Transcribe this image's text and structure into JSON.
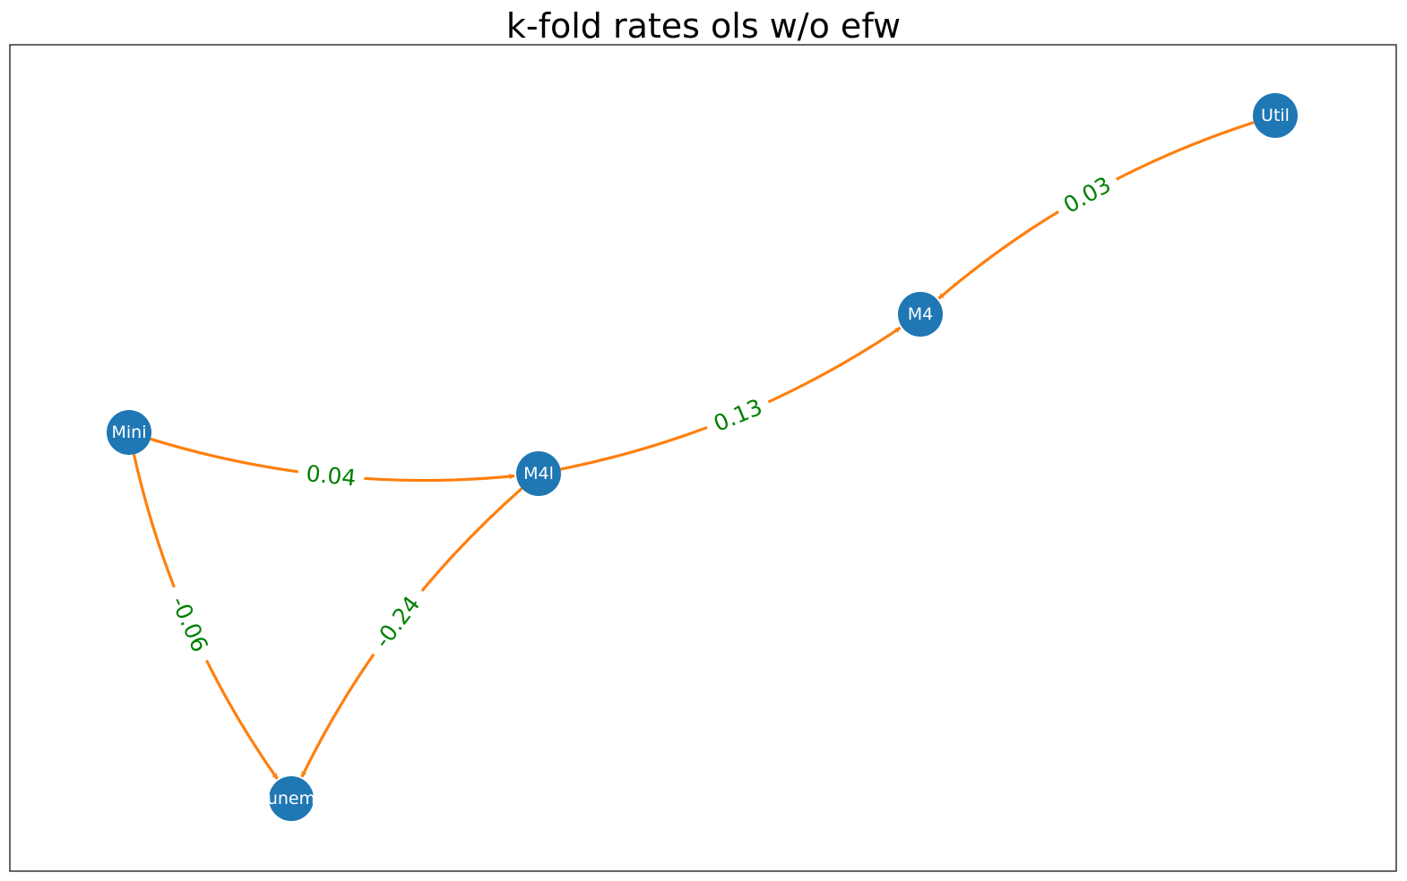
{
  "title": "k-fold rates ols w/o efw",
  "colors": {
    "node_fill": "#1f77b4",
    "node_text": "#ffffff",
    "edge": "#ff7f0e",
    "edge_label": "#008000",
    "frame": "#000000"
  },
  "nodes": [
    {
      "id": "Util",
      "label": "Util"
    },
    {
      "id": "M4",
      "label": "M4"
    },
    {
      "id": "Mini",
      "label": "Mini"
    },
    {
      "id": "M4l",
      "label": "M4l"
    },
    {
      "id": "unem",
      "label": "unem"
    }
  ],
  "edges": [
    {
      "from": "Util",
      "to": "M4",
      "label": "0.03"
    },
    {
      "from": "M4l",
      "to": "M4",
      "label": "0.13"
    },
    {
      "from": "Mini",
      "to": "M4l",
      "label": "0.04"
    },
    {
      "from": "Mini",
      "to": "unem",
      "label": "-0.06"
    },
    {
      "from": "M4l",
      "to": "unem",
      "label": "-0.24"
    }
  ]
}
